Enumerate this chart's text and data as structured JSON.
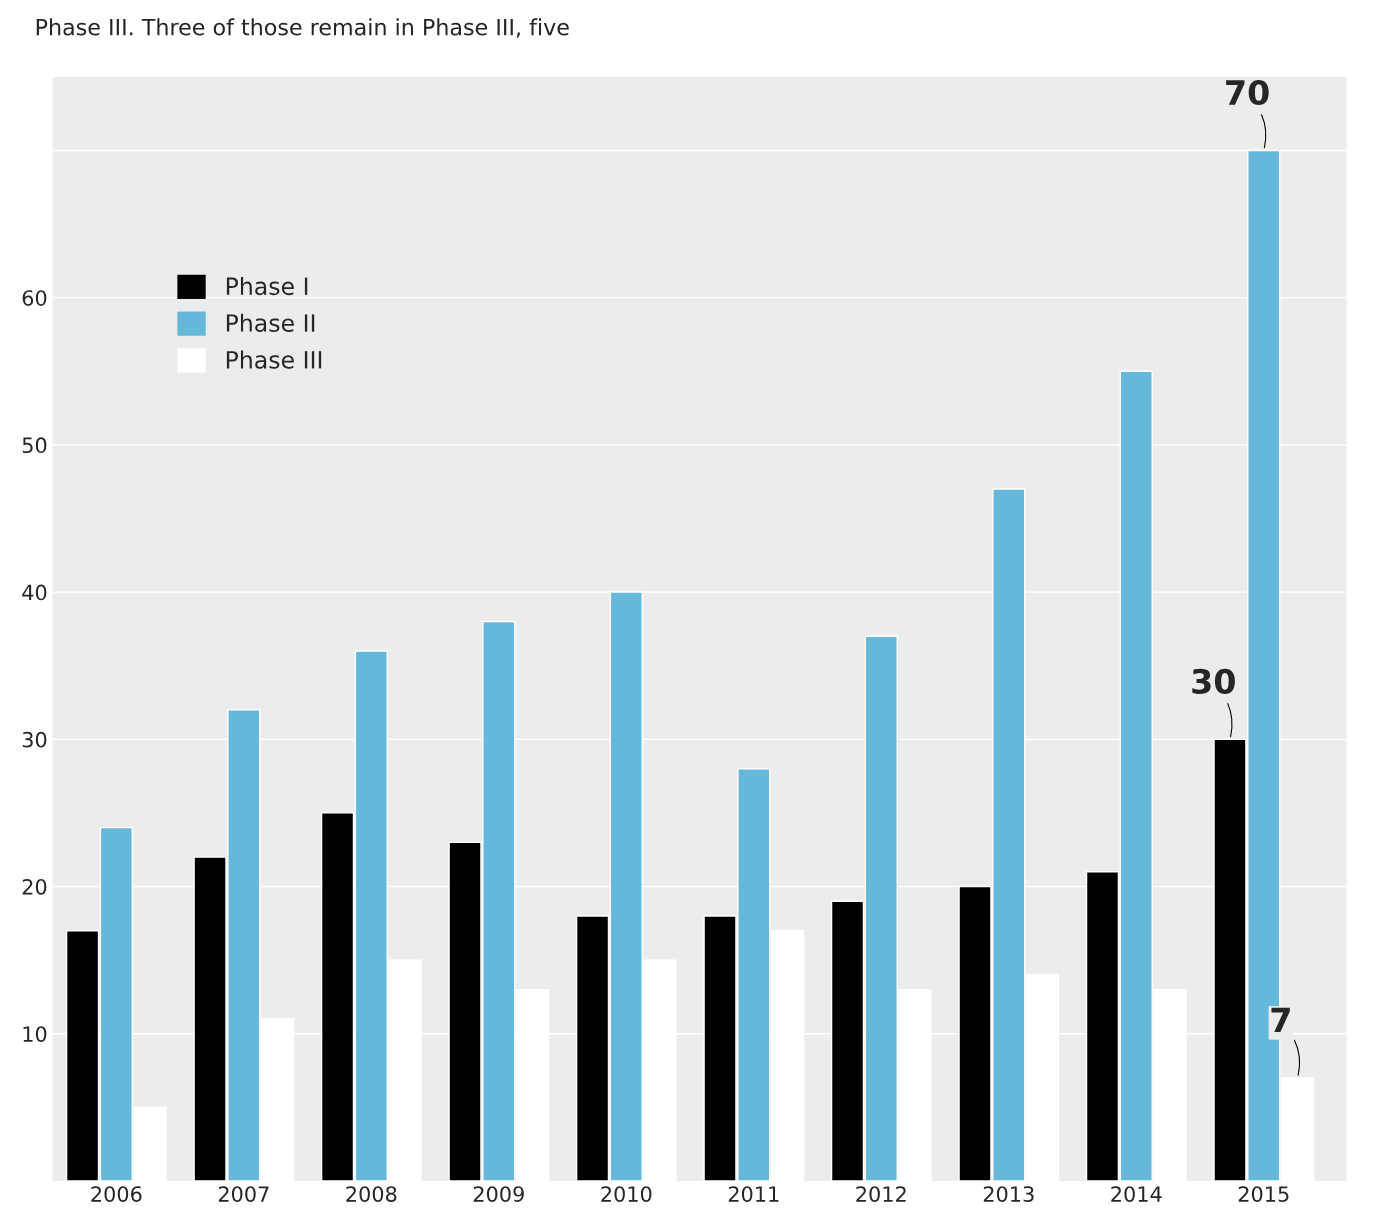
{
  "chart_data": {
    "type": "bar",
    "annotations": [
      "Phase III. Three of those remain in Phase III, five"
    ],
    "categories": [
      "2006",
      "2007",
      "2008",
      "2009",
      "2010",
      "2011",
      "2012",
      "2013",
      "2014",
      "2015"
    ],
    "series": [
      {
        "name": "Phase I",
        "color": "#000000",
        "values": [
          17,
          22,
          25,
          23,
          18,
          18,
          19,
          20,
          21,
          30
        ],
        "value_labels": [
          null,
          null,
          null,
          null,
          null,
          null,
          null,
          null,
          null,
          "30"
        ]
      },
      {
        "name": "Phase II",
        "color": "#65b8d9",
        "values": [
          24,
          32,
          36,
          38,
          40,
          28,
          37,
          47,
          55,
          70
        ],
        "value_labels": [
          null,
          null,
          null,
          null,
          null,
          null,
          null,
          null,
          null,
          "70"
        ]
      },
      {
        "name": "Phase III",
        "color": "#ffffff",
        "values": [
          5,
          11,
          15,
          13,
          15,
          17,
          13,
          14,
          13,
          7
        ],
        "value_labels": [
          null,
          null,
          null,
          null,
          null,
          null,
          null,
          null,
          null,
          "7"
        ]
      }
    ],
    "ylim": [
      0,
      75
    ],
    "yticks": [
      10,
      20,
      30,
      40,
      50,
      60,
      {
        "value": 70,
        "label": null
      }
    ],
    "grid": "y",
    "legend": "top left"
  }
}
